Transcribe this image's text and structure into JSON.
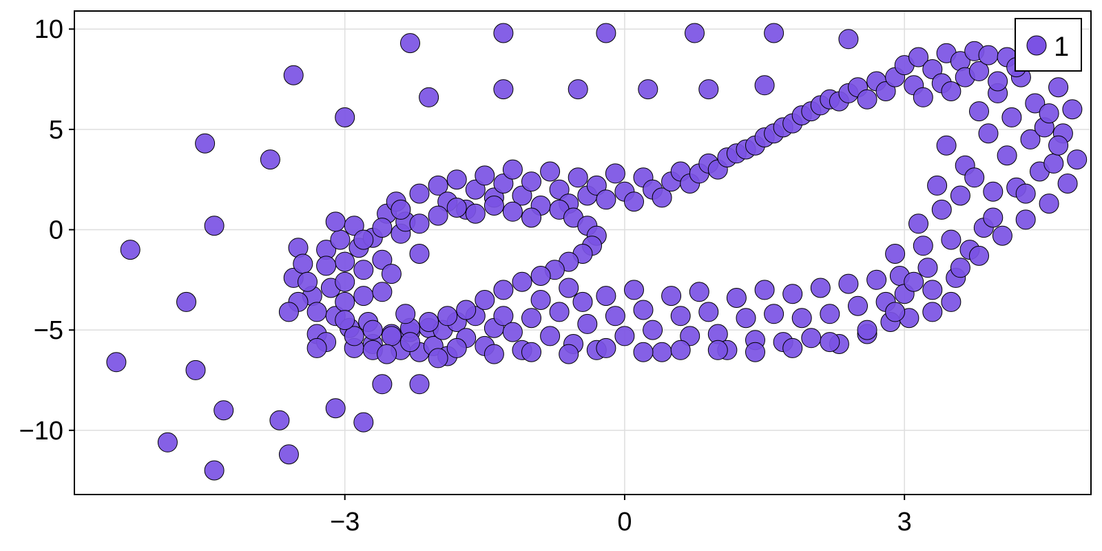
{
  "chart_data": {
    "type": "scatter",
    "title": "",
    "xlabel": "",
    "ylabel": "",
    "xlim": [
      -5.9,
      5.0
    ],
    "ylim": [
      -13.2,
      10.9
    ],
    "x_ticks": [
      -3,
      0,
      3
    ],
    "x_tick_labels": [
      "−3",
      "0",
      "3"
    ],
    "y_ticks": [
      10,
      5,
      0,
      -5,
      -10
    ],
    "y_tick_labels": [
      "10",
      "5",
      "0",
      "−5",
      "−10"
    ],
    "grid": true,
    "legend_position": "top-right",
    "series": [
      {
        "name": "1",
        "color": "#7b52e4",
        "points": [
          [
            -5.3,
            -1.0
          ],
          [
            -4.9,
            -10.6
          ],
          [
            -4.7,
            -3.6
          ],
          [
            -4.6,
            -7.0
          ],
          [
            -4.5,
            4.3
          ],
          [
            -4.4,
            -12.0
          ],
          [
            -4.3,
            -9.0
          ],
          [
            -4.4,
            0.2
          ],
          [
            -3.8,
            3.5
          ],
          [
            -3.7,
            -9.5
          ],
          [
            -3.6,
            -11.2
          ],
          [
            -3.55,
            7.7
          ],
          [
            -3.1,
            -8.9
          ],
          [
            -3.0,
            5.6
          ],
          [
            -2.8,
            -9.6
          ],
          [
            -2.6,
            -7.7
          ],
          [
            -2.3,
            9.3
          ],
          [
            -2.2,
            -7.7
          ],
          [
            -2.1,
            6.6
          ],
          [
            -1.3,
            9.8
          ],
          [
            -1.3,
            7.0
          ],
          [
            -0.5,
            7.0
          ],
          [
            -0.2,
            9.8
          ],
          [
            0.25,
            7.0
          ],
          [
            0.75,
            9.8
          ],
          [
            0.9,
            7.0
          ],
          [
            1.5,
            7.2
          ],
          [
            1.6,
            9.8
          ],
          [
            2.4,
            9.5
          ],
          [
            -5.45,
            -6.6
          ],
          [
            -3.55,
            -2.4
          ],
          [
            -3.5,
            -0.9
          ],
          [
            -3.45,
            -1.7
          ],
          [
            -3.35,
            -3.3
          ],
          [
            -3.3,
            -4.1
          ],
          [
            -3.3,
            -5.2
          ],
          [
            -3.2,
            -1.0
          ],
          [
            -3.15,
            -2.9
          ],
          [
            -3.1,
            -4.3
          ],
          [
            -3.05,
            -0.5
          ],
          [
            -3.0,
            -1.6
          ],
          [
            -3.0,
            -2.6
          ],
          [
            -3.0,
            -3.6
          ],
          [
            -2.95,
            -4.9
          ],
          [
            -2.9,
            -5.9
          ],
          [
            -2.85,
            -0.9
          ],
          [
            -2.8,
            -2.0
          ],
          [
            -2.8,
            -3.3
          ],
          [
            -2.75,
            -4.6
          ],
          [
            -2.7,
            -5.7
          ],
          [
            -3.1,
            0.4
          ],
          [
            -2.9,
            0.2
          ],
          [
            -2.7,
            -0.4
          ],
          [
            -2.6,
            -1.5
          ],
          [
            -2.55,
            0.8
          ],
          [
            -2.45,
            1.4
          ],
          [
            -2.4,
            -0.2
          ],
          [
            -2.35,
            0.4
          ],
          [
            -2.5,
            -5.2
          ],
          [
            -2.4,
            -6.0
          ],
          [
            -2.3,
            -5.1
          ],
          [
            -2.2,
            -6.1
          ],
          [
            -2.1,
            -4.9
          ],
          [
            -2.05,
            -5.8
          ],
          [
            -1.95,
            -5.0
          ],
          [
            -1.9,
            -6.3
          ],
          [
            -1.8,
            -4.6
          ],
          [
            -1.7,
            -5.4
          ],
          [
            -1.6,
            -4.3
          ],
          [
            -1.5,
            -5.8
          ],
          [
            -1.4,
            -4.9
          ],
          [
            -1.3,
            -4.3
          ],
          [
            -1.2,
            -5.1
          ],
          [
            -1.1,
            -6.0
          ],
          [
            -1.0,
            -4.4
          ],
          [
            -0.9,
            -3.5
          ],
          [
            -0.8,
            -5.3
          ],
          [
            -0.7,
            -4.1
          ],
          [
            -0.6,
            -2.9
          ],
          [
            -0.55,
            -5.7
          ],
          [
            -0.45,
            -3.6
          ],
          [
            -0.4,
            -4.7
          ],
          [
            -0.3,
            -6.0
          ],
          [
            -0.2,
            -3.3
          ],
          [
            -0.1,
            -4.3
          ],
          [
            0.0,
            -5.3
          ],
          [
            0.1,
            -3.0
          ],
          [
            0.2,
            -4.0
          ],
          [
            0.3,
            -5.0
          ],
          [
            0.4,
            -6.1
          ],
          [
            0.5,
            -3.3
          ],
          [
            0.6,
            -4.3
          ],
          [
            0.7,
            -5.3
          ],
          [
            0.8,
            -3.1
          ],
          [
            0.9,
            -4.1
          ],
          [
            1.0,
            -5.2
          ],
          [
            1.1,
            -6.0
          ],
          [
            1.2,
            -3.4
          ],
          [
            1.3,
            -4.4
          ],
          [
            1.4,
            -5.5
          ],
          [
            1.5,
            -3.0
          ],
          [
            1.6,
            -4.2
          ],
          [
            1.7,
            -5.6
          ],
          [
            1.8,
            -3.2
          ],
          [
            1.9,
            -4.4
          ],
          [
            2.0,
            -5.4
          ],
          [
            2.1,
            -2.9
          ],
          [
            2.2,
            -4.2
          ],
          [
            2.3,
            -5.7
          ],
          [
            2.4,
            -2.7
          ],
          [
            2.5,
            -3.8
          ],
          [
            2.6,
            -5.2
          ],
          [
            2.7,
            -2.5
          ],
          [
            2.8,
            -3.6
          ],
          [
            2.85,
            -4.6
          ],
          [
            2.9,
            -1.2
          ],
          [
            2.95,
            -2.3
          ],
          [
            3.0,
            -3.2
          ],
          [
            3.05,
            -4.4
          ],
          [
            3.15,
            0.3
          ],
          [
            3.2,
            -0.8
          ],
          [
            3.25,
            -1.9
          ],
          [
            3.3,
            -3.0
          ],
          [
            3.3,
            -4.1
          ],
          [
            3.35,
            2.2
          ],
          [
            3.4,
            1.0
          ],
          [
            3.45,
            4.2
          ],
          [
            3.5,
            -0.5
          ],
          [
            3.55,
            -2.4
          ],
          [
            3.6,
            1.7
          ],
          [
            3.65,
            3.2
          ],
          [
            3.7,
            -1.0
          ],
          [
            3.75,
            2.6
          ],
          [
            3.8,
            5.9
          ],
          [
            3.85,
            0.1
          ],
          [
            3.9,
            4.8
          ],
          [
            3.95,
            1.9
          ],
          [
            4.0,
            6.8
          ],
          [
            4.05,
            -0.3
          ],
          [
            4.1,
            3.7
          ],
          [
            4.15,
            5.6
          ],
          [
            4.2,
            2.1
          ],
          [
            4.25,
            7.6
          ],
          [
            4.3,
            0.5
          ],
          [
            4.35,
            4.5
          ],
          [
            4.4,
            6.3
          ],
          [
            4.45,
            2.9
          ],
          [
            4.5,
            5.1
          ],
          [
            4.55,
            1.3
          ],
          [
            4.6,
            3.3
          ],
          [
            4.65,
            7.1
          ],
          [
            4.7,
            4.8
          ],
          [
            4.75,
            2.3
          ],
          [
            4.8,
            6.0
          ],
          [
            4.85,
            3.5
          ],
          [
            -2.4,
            1.0
          ],
          [
            -2.2,
            1.8
          ],
          [
            -2.0,
            2.2
          ],
          [
            -1.9,
            1.4
          ],
          [
            -1.8,
            2.5
          ],
          [
            -1.7,
            1.0
          ],
          [
            -1.6,
            2.0
          ],
          [
            -1.5,
            2.7
          ],
          [
            -1.4,
            1.6
          ],
          [
            -1.3,
            2.3
          ],
          [
            -1.2,
            3.0
          ],
          [
            -1.1,
            1.7
          ],
          [
            -1.0,
            2.4
          ],
          [
            -0.9,
            1.2
          ],
          [
            -0.8,
            2.9
          ],
          [
            -0.7,
            2.0
          ],
          [
            -0.6,
            1.3
          ],
          [
            -0.5,
            2.6
          ],
          [
            -0.4,
            1.7
          ],
          [
            -0.3,
            2.2
          ],
          [
            -0.2,
            1.5
          ],
          [
            -0.1,
            2.8
          ],
          [
            0.0,
            1.9
          ],
          [
            0.1,
            1.4
          ],
          [
            0.2,
            2.6
          ],
          [
            0.3,
            2.0
          ],
          [
            0.4,
            1.6
          ],
          [
            0.5,
            2.4
          ],
          [
            0.6,
            2.9
          ],
          [
            0.7,
            2.3
          ],
          [
            0.8,
            2.8
          ],
          [
            0.9,
            3.3
          ],
          [
            1.0,
            3.0
          ],
          [
            1.1,
            3.6
          ],
          [
            1.2,
            3.8
          ],
          [
            1.3,
            4.0
          ],
          [
            1.4,
            4.2
          ],
          [
            1.5,
            4.6
          ],
          [
            1.6,
            4.8
          ],
          [
            1.7,
            5.1
          ],
          [
            1.8,
            5.3
          ],
          [
            1.9,
            5.7
          ],
          [
            2.0,
            5.9
          ],
          [
            2.1,
            6.2
          ],
          [
            2.2,
            6.5
          ],
          [
            2.3,
            6.4
          ],
          [
            2.4,
            6.8
          ],
          [
            2.5,
            7.1
          ],
          [
            2.6,
            6.5
          ],
          [
            2.7,
            7.4
          ],
          [
            2.8,
            6.9
          ],
          [
            2.9,
            7.6
          ],
          [
            3.0,
            8.2
          ],
          [
            3.1,
            7.2
          ],
          [
            3.15,
            8.6
          ],
          [
            3.2,
            6.6
          ],
          [
            3.3,
            8.0
          ],
          [
            3.4,
            7.3
          ],
          [
            3.45,
            8.8
          ],
          [
            3.5,
            6.9
          ],
          [
            3.6,
            8.4
          ],
          [
            3.65,
            7.6
          ],
          [
            3.75,
            8.9
          ],
          [
            3.8,
            7.9
          ],
          [
            3.9,
            8.7
          ],
          [
            4.0,
            7.4
          ],
          [
            4.1,
            8.6
          ],
          [
            4.2,
            8.1
          ],
          [
            -0.7,
            1.0
          ],
          [
            -0.55,
            0.6
          ],
          [
            -0.4,
            0.2
          ],
          [
            -0.3,
            -0.3
          ],
          [
            -0.35,
            -0.8
          ],
          [
            -0.45,
            -1.2
          ],
          [
            -0.6,
            -1.6
          ],
          [
            -0.75,
            -2.0
          ],
          [
            -0.9,
            -2.3
          ],
          [
            -1.1,
            -2.6
          ],
          [
            -1.3,
            -3.0
          ],
          [
            -1.5,
            -3.5
          ],
          [
            -1.7,
            -4.0
          ],
          [
            -1.9,
            -4.3
          ],
          [
            -2.1,
            -4.6
          ],
          [
            -2.3,
            -4.9
          ],
          [
            -2.5,
            -5.3
          ],
          [
            -2.7,
            -5.0
          ],
          [
            -2.2,
            -1.2
          ],
          [
            -2.5,
            -2.2
          ],
          [
            -2.6,
            -3.1
          ],
          [
            -2.35,
            -4.2
          ],
          [
            -1.0,
            0.6
          ],
          [
            -1.2,
            0.9
          ],
          [
            -1.4,
            1.2
          ],
          [
            -1.6,
            0.8
          ],
          [
            -1.8,
            1.1
          ],
          [
            -2.0,
            0.7
          ],
          [
            -2.2,
            0.3
          ],
          [
            -2.6,
            0.1
          ],
          [
            -2.8,
            -0.5
          ],
          [
            -3.2,
            -1.8
          ],
          [
            -3.4,
            -2.6
          ],
          [
            -3.5,
            -3.6
          ],
          [
            -3.6,
            -4.1
          ],
          [
            -3.2,
            -5.6
          ],
          [
            -2.9,
            -5.3
          ],
          [
            -3.0,
            -4.5
          ],
          [
            -3.3,
            -5.9
          ],
          [
            -2.7,
            -6.0
          ],
          [
            -2.55,
            -6.2
          ],
          [
            -2.3,
            -5.6
          ],
          [
            -2.0,
            -6.4
          ],
          [
            -1.8,
            -5.9
          ],
          [
            -1.4,
            -6.2
          ],
          [
            -1.0,
            -6.1
          ],
          [
            -0.6,
            -6.2
          ],
          [
            -0.2,
            -5.9
          ],
          [
            0.2,
            -6.1
          ],
          [
            0.6,
            -6.0
          ],
          [
            1.0,
            -6.0
          ],
          [
            1.4,
            -6.1
          ],
          [
            1.8,
            -5.9
          ],
          [
            2.2,
            -5.6
          ],
          [
            2.6,
            -5.0
          ],
          [
            2.9,
            -4.1
          ],
          [
            3.1,
            -2.6
          ],
          [
            3.5,
            -3.6
          ],
          [
            3.6,
            -1.9
          ],
          [
            3.8,
            -1.3
          ],
          [
            3.95,
            0.6
          ],
          [
            4.3,
            1.8
          ],
          [
            4.55,
            5.8
          ],
          [
            4.65,
            4.2
          ]
        ]
      }
    ]
  }
}
